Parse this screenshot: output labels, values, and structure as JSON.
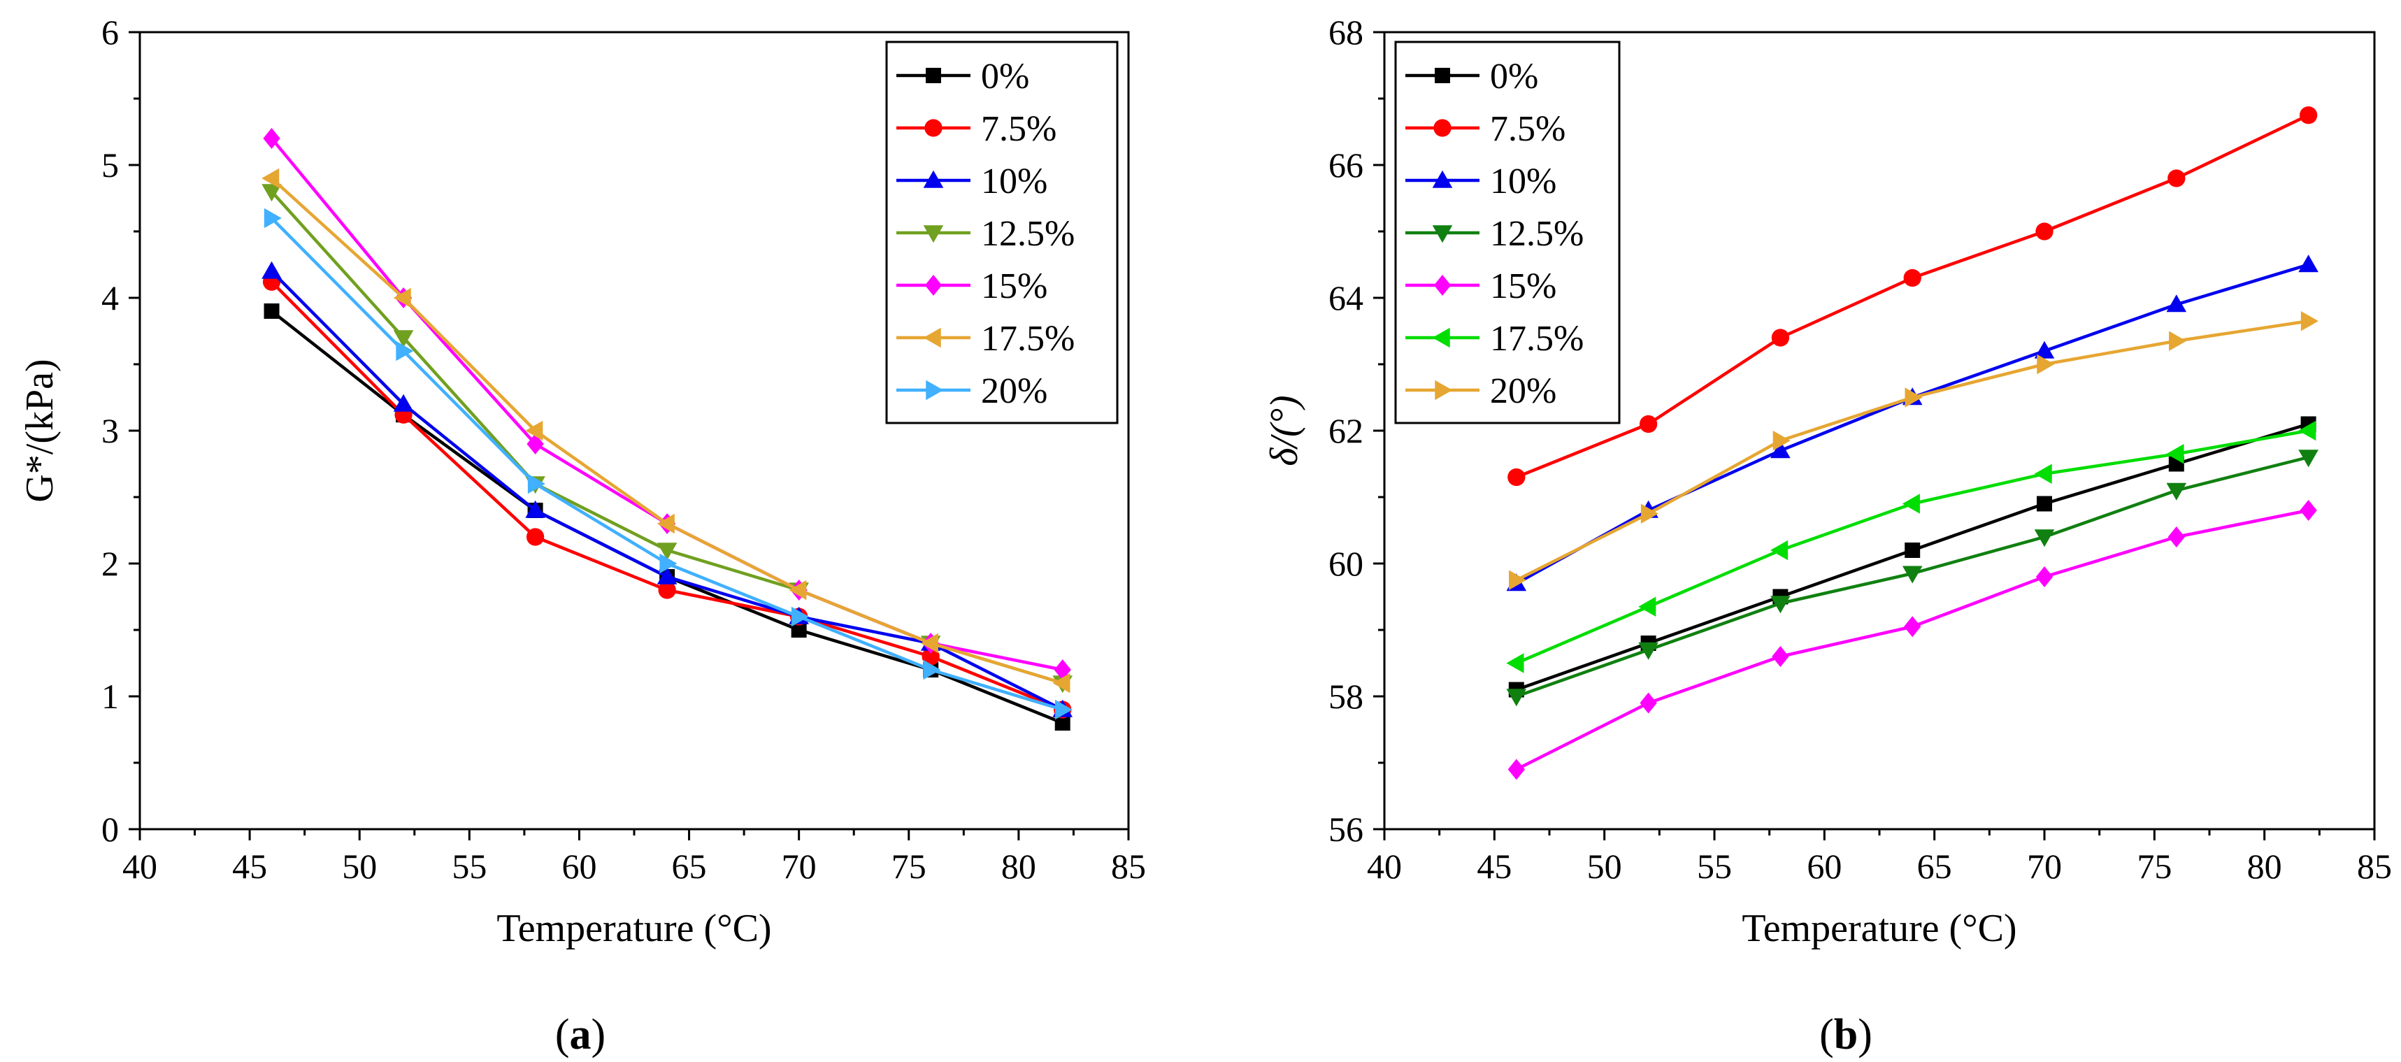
{
  "chart_data": [
    {
      "type": "line",
      "panel_label": "a",
      "xlabel": "Temperature (°C)",
      "ylabel": "G*/(kPa)",
      "xlim": [
        40,
        85
      ],
      "ylim": [
        0,
        6
      ],
      "xticks": [
        40,
        45,
        50,
        55,
        60,
        65,
        70,
        75,
        80,
        85
      ],
      "yticks": [
        0,
        1,
        2,
        3,
        4,
        5,
        6
      ],
      "legend_position": "top-right",
      "x": [
        46,
        52,
        58,
        64,
        70,
        76,
        82
      ],
      "series": [
        {
          "name": "0%",
          "color": "#000000",
          "marker": "square",
          "values": [
            3.9,
            3.12,
            2.4,
            1.9,
            1.5,
            1.2,
            0.8
          ]
        },
        {
          "name": "7.5%",
          "color": "#ff0000",
          "marker": "circle",
          "values": [
            4.12,
            3.12,
            2.2,
            1.8,
            1.6,
            1.3,
            0.9
          ]
        },
        {
          "name": "10%",
          "color": "#0000ee",
          "marker": "triangle-up",
          "values": [
            4.2,
            3.2,
            2.4,
            1.9,
            1.6,
            1.4,
            0.9
          ]
        },
        {
          "name": "12.5%",
          "color": "#70a020",
          "marker": "triangle-down",
          "values": [
            4.8,
            3.7,
            2.6,
            2.1,
            1.8,
            1.4,
            1.1
          ]
        },
        {
          "name": "15%",
          "color": "#ff00ff",
          "marker": "diamond",
          "values": [
            5.2,
            4.0,
            2.9,
            2.3,
            1.8,
            1.4,
            1.2
          ]
        },
        {
          "name": "17.5%",
          "color": "#e6a632",
          "marker": "triangle-left",
          "values": [
            4.9,
            4.0,
            3.0,
            2.3,
            1.8,
            1.4,
            1.1
          ]
        },
        {
          "name": "20%",
          "color": "#40b0ff",
          "marker": "triangle-right",
          "values": [
            4.6,
            3.6,
            2.6,
            2.0,
            1.6,
            1.2,
            0.9
          ]
        }
      ]
    },
    {
      "type": "line",
      "panel_label": "b",
      "xlabel": "Temperature (°C)",
      "ylabel": "δ/(°)",
      "xlim": [
        40,
        85
      ],
      "ylim": [
        56,
        68
      ],
      "xticks": [
        40,
        45,
        50,
        55,
        60,
        65,
        70,
        75,
        80,
        85
      ],
      "yticks": [
        56,
        58,
        60,
        62,
        64,
        66,
        68
      ],
      "legend_position": "top-left",
      "x": [
        46,
        52,
        58,
        64,
        70,
        76,
        82
      ],
      "series": [
        {
          "name": "0%",
          "color": "#000000",
          "marker": "square",
          "values": [
            58.1,
            58.8,
            59.5,
            60.2,
            60.9,
            61.5,
            62.1
          ]
        },
        {
          "name": "7.5%",
          "color": "#ff0000",
          "marker": "circle",
          "values": [
            61.3,
            62.1,
            63.4,
            64.3,
            65.0,
            65.8,
            66.75
          ]
        },
        {
          "name": "10%",
          "color": "#0000ee",
          "marker": "triangle-up",
          "values": [
            59.7,
            60.8,
            61.7,
            62.5,
            63.2,
            63.9,
            64.5
          ]
        },
        {
          "name": "12.5%",
          "color": "#108010",
          "marker": "triangle-down",
          "values": [
            58.0,
            58.7,
            59.4,
            59.85,
            60.4,
            61.1,
            61.6
          ]
        },
        {
          "name": "15%",
          "color": "#ff00ff",
          "marker": "diamond",
          "values": [
            56.9,
            57.9,
            58.6,
            59.05,
            59.8,
            60.4,
            60.8
          ]
        },
        {
          "name": "17.5%",
          "color": "#00dd00",
          "marker": "triangle-left",
          "values": [
            58.5,
            59.35,
            60.2,
            60.9,
            61.35,
            61.65,
            62.0
          ]
        },
        {
          "name": "20%",
          "color": "#e6a632",
          "marker": "triangle-right",
          "values": [
            59.75,
            60.75,
            61.85,
            62.5,
            63.0,
            63.35,
            63.65
          ]
        }
      ]
    }
  ]
}
